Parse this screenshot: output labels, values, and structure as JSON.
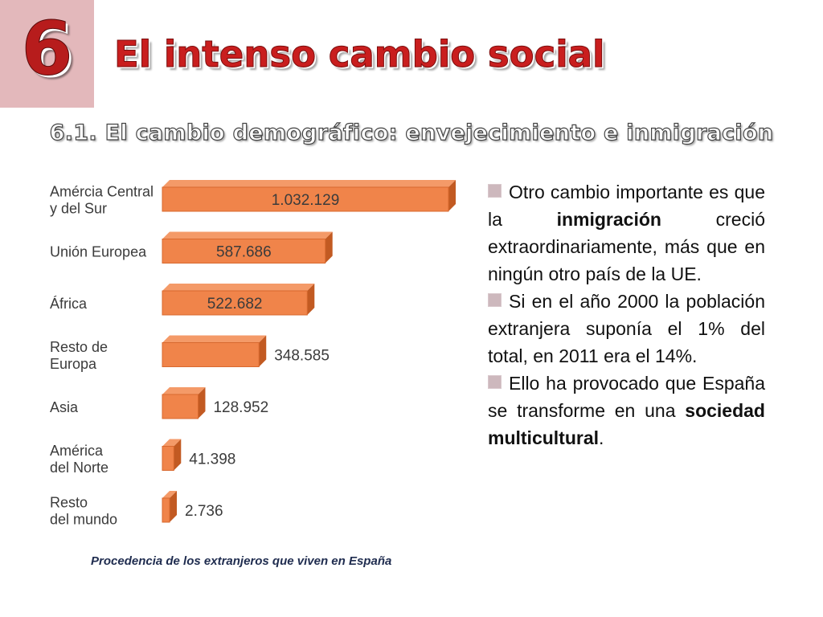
{
  "slide": {
    "number": "6",
    "title": "El intenso cambio social",
    "subtitle": "6.1. El cambio demográfico: envejecimiento e inmigración",
    "caption": "Procedencia de los extranjeros que viven en España"
  },
  "bullets": [
    {
      "parts": [
        {
          "text": "Otro cambio importante es que la "
        },
        {
          "text": "inmigración",
          "bold": true
        },
        {
          "text": " creció extraordinariamente, más que en ningún otro país de la UE."
        }
      ]
    },
    {
      "parts": [
        {
          "text": "Si en el año 2000 la población extranjera suponía el 1% del total, en 2011 era el 14%."
        }
      ]
    },
    {
      "parts": [
        {
          "text": "Ello ha provocado que España se transforme en una "
        },
        {
          "text": "sociedad multicultural",
          "bold": true
        },
        {
          "text": "."
        }
      ]
    }
  ],
  "colors": {
    "bar_front": "#f0844a",
    "bar_top": "#f49a68",
    "bar_side": "#c25a22",
    "title_red": "#c91e1e",
    "number_box": "#e3b8bb",
    "bullet_square": "#cdb8bd",
    "caption_text": "#1f2c4f"
  },
  "chart_data": {
    "type": "bar",
    "orientation": "horizontal",
    "categories": [
      [
        "Amércia Central",
        "y del Sur"
      ],
      [
        "Unión Europea"
      ],
      [
        "África"
      ],
      [
        "Resto de",
        "Europa"
      ],
      [
        "Asia"
      ],
      [
        "América",
        "del Norte"
      ],
      [
        "Resto",
        "del mundo"
      ]
    ],
    "values": [
      1032129,
      587686,
      522682,
      348585,
      128952,
      41398,
      2736
    ],
    "value_labels": [
      "1.032.129",
      "587.686",
      "522.682",
      "348.585",
      "128.952",
      "41.398",
      "2.736"
    ],
    "title": "",
    "xlabel": "",
    "ylabel": "",
    "grid": false,
    "style": "3d"
  }
}
